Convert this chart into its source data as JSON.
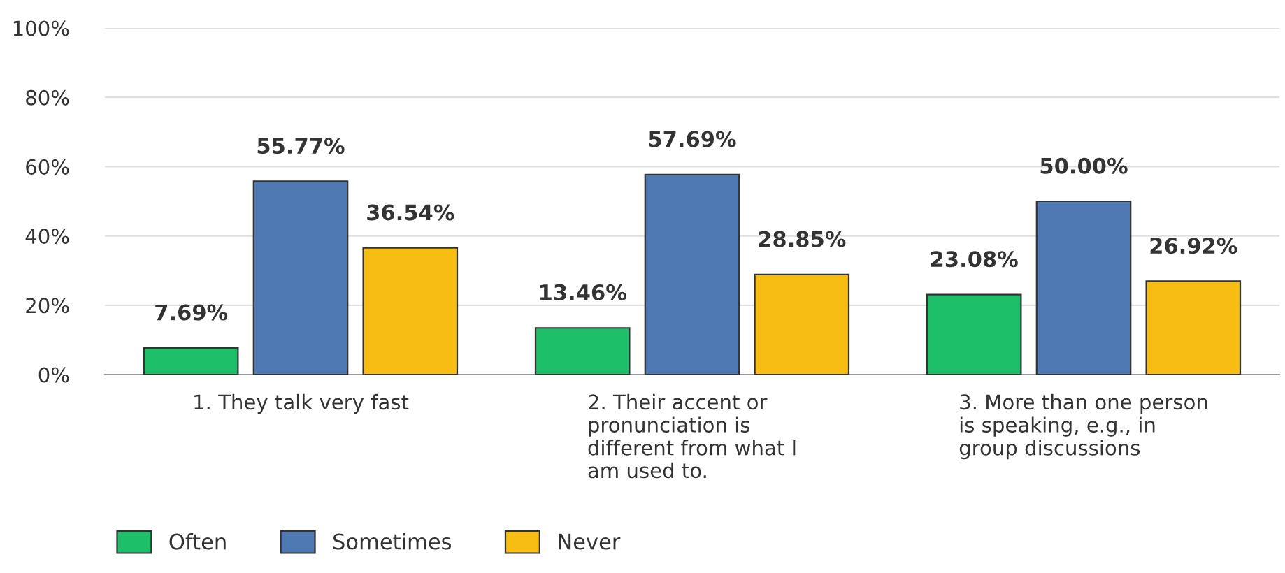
{
  "chart_data": {
    "type": "bar",
    "categories": [
      "1. They talk very fast",
      "2. Their accent or pronunciation is different from what I am used to.",
      "3. More than one person is speaking, e.g., in group discussions"
    ],
    "series": [
      {
        "name": "Often",
        "color": "#1dbf68",
        "values": [
          7.69,
          13.46,
          23.08
        ],
        "value_labels": [
          "7.69%",
          "13.46%",
          "23.08%"
        ]
      },
      {
        "name": "Sometimes",
        "color": "#4f79b3",
        "values": [
          55.77,
          57.69,
          50.0
        ],
        "value_labels": [
          "55.77%",
          "57.69%",
          "50.00%"
        ]
      },
      {
        "name": "Never",
        "color": "#f7bd12",
        "values": [
          36.54,
          28.85,
          26.92
        ],
        "value_labels": [
          "36.54%",
          "28.85%",
          "26.92%"
        ]
      }
    ],
    "ylim": [
      0,
      100
    ],
    "yticks": [
      {
        "value": 0,
        "label": "0%"
      },
      {
        "value": 20,
        "label": "20%"
      },
      {
        "value": 40,
        "label": "40%"
      },
      {
        "value": 60,
        "label": "60%"
      },
      {
        "value": 80,
        "label": "80%"
      },
      {
        "value": 100,
        "label": "100%"
      }
    ],
    "grid": "y",
    "legend": "bottom left"
  }
}
